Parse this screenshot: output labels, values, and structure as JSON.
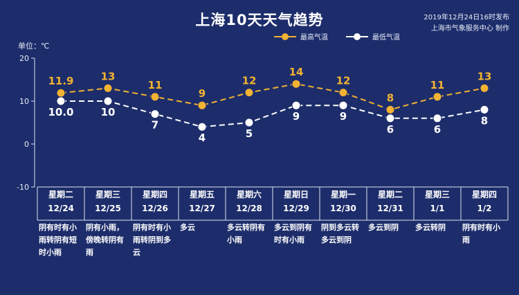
{
  "header": {
    "title": "上海10天天气趋势",
    "publish_time": "2019年12月24日16时发布",
    "publisher": "上海市气象服务中心 制作"
  },
  "colors": {
    "background": "#1d2d6b",
    "high": "#f2b233",
    "low": "#ffffff",
    "grid": "#dfe4f2"
  },
  "chart_data": {
    "type": "line",
    "title": "上海10天天气趋势",
    "ylabel": "单位：℃",
    "ylim": [
      -10,
      20
    ],
    "yticks": [
      "20",
      "10",
      "0",
      "-10"
    ],
    "grid": false,
    "legend": "top",
    "categories": [
      "12/24",
      "12/25",
      "12/26",
      "12/27",
      "12/28",
      "12/29",
      "12/30",
      "12/31",
      "1/1",
      "1/2"
    ],
    "weekdays": [
      "星期二",
      "星期三",
      "星期四",
      "星期五",
      "星期六",
      "星期日",
      "星期一",
      "星期二",
      "星期三",
      "星期四"
    ],
    "series": [
      {
        "name": "最高气温",
        "values": [
          11.9,
          13,
          11,
          9,
          12,
          14,
          12,
          8,
          11,
          13
        ],
        "labels": [
          "11.9",
          "13",
          "11",
          "9",
          "12",
          "14",
          "12",
          "8",
          "11",
          "13"
        ]
      },
      {
        "name": "最低气温",
        "values": [
          10.0,
          10,
          7,
          4,
          5,
          9,
          9,
          6,
          6,
          8
        ],
        "labels": [
          "10.0",
          "10",
          "7",
          "4",
          "5",
          "9",
          "9",
          "6",
          "6",
          "8"
        ]
      }
    ],
    "weather": [
      "阴有时有小雨转阴有短时小雨",
      "阴有小雨，傍晚转阴有雨",
      "阴有时有小雨转阴到多云",
      "多云",
      "多云转阴有小雨",
      "多云到阴有时有小雨",
      "阴到多云转多云到阴",
      "多云到阴",
      "多云转阴",
      "阴有时有小雨"
    ]
  }
}
